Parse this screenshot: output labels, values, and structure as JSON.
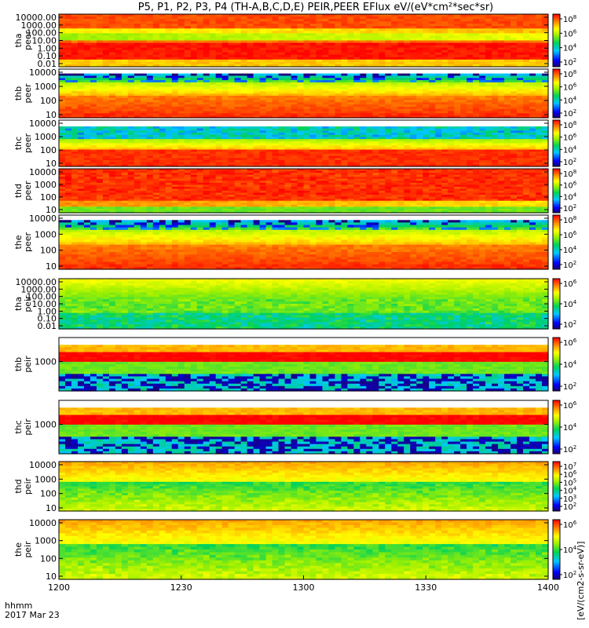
{
  "title": "P5, P1, P2, P3, P4 (TH-A,B,C,D,E) PEIR,PEER EFlux eV/(eV*cm²*sec*sr)",
  "x_axis": {
    "label_line1": "hhmm",
    "label_line2": "2017 Mar 23",
    "ticks": [
      "1200",
      "1230",
      "1300",
      "1330",
      "1400"
    ]
  },
  "colorbar_unit": "[eV/(cm2-s-sr-eV)]",
  "chart_data": [
    {
      "type": "heatmap",
      "panel": "tha peer",
      "ylabel_line1": "tha",
      "ylabel_line2": "peer",
      "yticks": [
        "10000.00",
        "1000.00",
        "100.00",
        "10.00",
        "1.00",
        "0.10",
        "0.01"
      ],
      "ylim": [
        0.01,
        10000
      ],
      "y_scale": "log",
      "colorbar_ticks": [
        "10^8",
        "10^6",
        "10^4",
        "10^2"
      ]
    },
    {
      "type": "heatmap",
      "panel": "thb peer",
      "ylabel_line1": "thb",
      "ylabel_line2": "peer",
      "yticks": [
        "10000",
        "1000",
        "100",
        "10"
      ],
      "ylim": [
        10,
        10000
      ],
      "y_scale": "log",
      "colorbar_ticks": [
        "10^8",
        "10^6",
        "10^4",
        "10^2"
      ]
    },
    {
      "type": "heatmap",
      "panel": "thc peer",
      "ylabel_line1": "thc",
      "ylabel_line2": "peer",
      "yticks": [
        "10000",
        "1000",
        "100",
        "10"
      ],
      "ylim": [
        10,
        10000
      ],
      "y_scale": "log",
      "colorbar_ticks": [
        "10^8",
        "10^6",
        "10^4",
        "10^2"
      ]
    },
    {
      "type": "heatmap",
      "panel": "thd peer",
      "ylabel_line1": "thd",
      "ylabel_line2": "peer",
      "yticks": [
        "10000",
        "1000",
        "100",
        "10"
      ],
      "ylim": [
        10,
        10000
      ],
      "y_scale": "log",
      "colorbar_ticks": [
        "10^8",
        "10^6",
        "10^4",
        "10^2"
      ]
    },
    {
      "type": "heatmap",
      "panel": "the peer",
      "ylabel_line1": "the",
      "ylabel_line2": "peer",
      "yticks": [
        "10000",
        "1000",
        "100",
        "10"
      ],
      "ylim": [
        10,
        10000
      ],
      "y_scale": "log",
      "colorbar_ticks": [
        "10^8",
        "10^6",
        "10^4",
        "10^2"
      ]
    },
    {
      "type": "heatmap",
      "panel": "tha peir",
      "ylabel_line1": "tha",
      "ylabel_line2": "peir",
      "yticks": [
        "10000.00",
        "1000.00",
        "100.00",
        "10.00",
        "1.00",
        "0.10",
        "0.01"
      ],
      "ylim": [
        0.01,
        10000
      ],
      "y_scale": "log",
      "colorbar_ticks": [
        "10^6",
        "10^4",
        "10^2"
      ]
    },
    {
      "type": "heatmap",
      "panel": "thb peir",
      "ylabel_line1": "thb",
      "ylabel_line2": "peir",
      "yticks": [
        "1000"
      ],
      "ylim": [
        100,
        10000
      ],
      "y_scale": "log",
      "colorbar_ticks": [
        "10^6",
        "10^4",
        "10^2"
      ]
    },
    {
      "type": "heatmap",
      "panel": "thc peir",
      "ylabel_line1": "thc",
      "ylabel_line2": "peir",
      "yticks": [
        "1000"
      ],
      "ylim": [
        100,
        10000
      ],
      "y_scale": "log",
      "colorbar_ticks": [
        "10^6",
        "10^4",
        "10^2"
      ]
    },
    {
      "type": "heatmap",
      "panel": "thd peir",
      "ylabel_line1": "thd",
      "ylabel_line2": "peir",
      "yticks": [
        "10000",
        "1000",
        "100",
        "10"
      ],
      "ylim": [
        10,
        10000
      ],
      "y_scale": "log",
      "colorbar_ticks": [
        "10^7",
        "10^6",
        "10^5",
        "10^4",
        "10^3",
        "10^2"
      ]
    },
    {
      "type": "heatmap",
      "panel": "the peir",
      "ylabel_line1": "the",
      "ylabel_line2": "peir",
      "yticks": [
        "10000",
        "1000",
        "100",
        "10"
      ],
      "ylim": [
        10,
        10000
      ],
      "y_scale": "log",
      "colorbar_ticks": [
        "10^6",
        "10^4",
        "10^2"
      ]
    }
  ]
}
